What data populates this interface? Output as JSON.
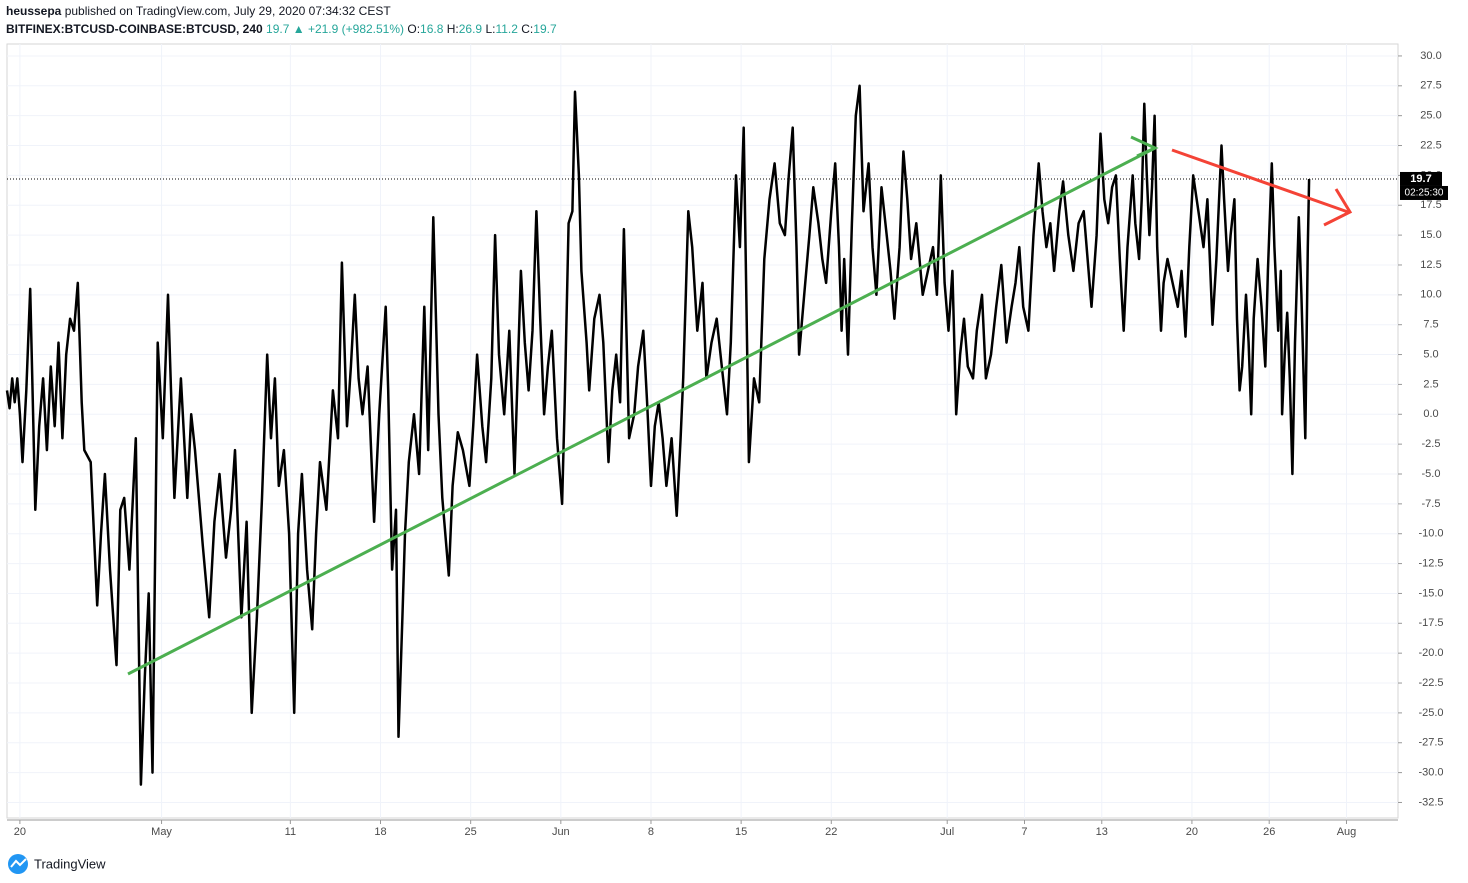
{
  "chart_data": {
    "type": "line",
    "author": "heussepa",
    "published": "published on TradingView.com, July 29, 2020 07:34:32 CEST",
    "symbol": "BITFINEX:BTCUSD-COINBASE:BTCUSD, 240",
    "last_price": 19.7,
    "change": "▲ +21.9 (+982.51%)",
    "ohlc": [
      {
        "label": "O:",
        "value": 16.8
      },
      {
        "label": "H:",
        "value": 26.9
      },
      {
        "label": "L:",
        "value": 11.2
      },
      {
        "label": "C:",
        "value": 19.7
      }
    ],
    "countdown": "02:25:30",
    "brand": "TradingView",
    "color": "#000000",
    "grid": true,
    "xlim": [
      -1,
      107
    ],
    "ylim": [
      -33.8,
      31
    ],
    "xticks": [
      {
        "value": 0,
        "label": "20"
      },
      {
        "value": 11,
        "label": "May"
      },
      {
        "value": 21,
        "label": "11"
      },
      {
        "value": 28,
        "label": "18"
      },
      {
        "value": 35,
        "label": "25"
      },
      {
        "value": 42,
        "label": "Jun"
      },
      {
        "value": 49,
        "label": "8"
      },
      {
        "value": 56,
        "label": "15"
      },
      {
        "value": 63,
        "label": "22"
      },
      {
        "value": 72,
        "label": "Jul"
      },
      {
        "value": 78,
        "label": "7"
      },
      {
        "value": 84,
        "label": "13"
      },
      {
        "value": 91,
        "label": "20"
      },
      {
        "value": 97,
        "label": "26"
      },
      {
        "value": 103,
        "label": "Aug"
      }
    ],
    "yticks": [
      {
        "value": 30,
        "label": "30.0"
      },
      {
        "value": 27.5,
        "label": "27.5"
      },
      {
        "value": 25,
        "label": "25.0"
      },
      {
        "value": 22.5,
        "label": "22.5"
      },
      {
        "value": 20,
        "label": "20.0"
      },
      {
        "value": 17.5,
        "label": "17.5"
      },
      {
        "value": 15,
        "label": "15.0"
      },
      {
        "value": 12.5,
        "label": "12.5"
      },
      {
        "value": 10,
        "label": "10.0"
      },
      {
        "value": 7.5,
        "label": "7.5"
      },
      {
        "value": 5,
        "label": "5.0"
      },
      {
        "value": 2.5,
        "label": "2.5"
      },
      {
        "value": 0,
        "label": "0.0"
      },
      {
        "value": -2.5,
        "label": "-2.5"
      },
      {
        "value": -5,
        "label": "-5.0"
      },
      {
        "value": -7.5,
        "label": "-7.5"
      },
      {
        "value": -10,
        "label": "-10.0"
      },
      {
        "value": -12.5,
        "label": "-12.5"
      },
      {
        "value": -15,
        "label": "-15.0"
      },
      {
        "value": -17.5,
        "label": "-17.5"
      },
      {
        "value": -20,
        "label": "-20.0"
      },
      {
        "value": -22.5,
        "label": "-22.5"
      },
      {
        "value": -25,
        "label": "-25.0"
      },
      {
        "value": -27.5,
        "label": "-27.5"
      },
      {
        "value": -30,
        "label": "-30.0"
      },
      {
        "value": -32.5,
        "label": "-32.5"
      }
    ],
    "x": [
      -1,
      -0.8,
      -0.6,
      -0.4,
      -0.2,
      0,
      0.2,
      0.5,
      0.8,
      1.2,
      1.5,
      1.8,
      2.1,
      2.4,
      2.7,
      3,
      3.3,
      3.6,
      3.9,
      4.2,
      4.5,
      4.8,
      5,
      5.5,
      6,
      6.3,
      6.6,
      7,
      7.5,
      7.8,
      8.1,
      8.5,
      9,
      9.4,
      9.7,
      10,
      10.3,
      10.7,
      11.1,
      11.5,
      12,
      12.5,
      13,
      13.3,
      13.6,
      14.2,
      14.7,
      15.1,
      15.5,
      16,
      16.4,
      16.7,
      17.2,
      17.6,
      18,
      18.4,
      18.8,
      19.2,
      19.5,
      19.8,
      20.1,
      20.5,
      20.9,
      21.3,
      21.6,
      21.9,
      22.3,
      22.7,
      23,
      23.3,
      23.8,
      24.3,
      24.7,
      25,
      25.4,
      25.7,
      26,
      26.3,
      26.6,
      27,
      27.5,
      27.9,
      28.4,
      28.6,
      28.9,
      29.2,
      29.4,
      29.7,
      29.9,
      30.2,
      30.6,
      31,
      31.4,
      31.7,
      32.1,
      32.5,
      32.8,
      33.3,
      33.6,
      34,
      34.4,
      34.9,
      35.2,
      35.5,
      35.9,
      36.2,
      36.6,
      36.9,
      37.2,
      37.6,
      38,
      38.4,
      38.9,
      39.2,
      39.5,
      39.8,
      40.1,
      40.4,
      40.7,
      41,
      41.3,
      41.7,
      42.1,
      42.3,
      42.6,
      42.9,
      43.1,
      43.4,
      43.6,
      44,
      44.2,
      44.6,
      45,
      45.3,
      45.7,
      46,
      46.3,
      46.6,
      46.9,
      47.3,
      47.7,
      48,
      48.4,
      48.7,
      49,
      49.3,
      49.6,
      49.9,
      50.2,
      50.6,
      51,
      51.3,
      51.5,
      51.7,
      51.9,
      52.2,
      52.6,
      53,
      53.3,
      53.7,
      54.1,
      54.5,
      54.9,
      55.2,
      55.6,
      55.9,
      56.2,
      56.4,
      56.6,
      57,
      57.4,
      57.8,
      58.2,
      58.6,
      59,
      59.4,
      59.7,
      60,
      60.3,
      60.5,
      60.9,
      61.3,
      61.6,
      62,
      62.3,
      62.6,
      63,
      63.3,
      63.6,
      63.8,
      64,
      64.3,
      64.6,
      64.9,
      65.2,
      65.5,
      65.9,
      66.2,
      66.5,
      66.9,
      67.3,
      67.6,
      67.9,
      68.3,
      68.6,
      68.9,
      69.2,
      69.6,
      70.1,
      70.5,
      70.9,
      71.2,
      71.5,
      71.8,
      72.1,
      72.4,
      72.7,
      73,
      73.3,
      73.6,
      74,
      74.3,
      74.7,
      75,
      75.4,
      75.8,
      76.2,
      76.6,
      77,
      77.3,
      77.6,
      77.9,
      78.3,
      78.7,
      79.1,
      79.4,
      79.7,
      80,
      80.3,
      80.7,
      81,
      81.4,
      81.8,
      82.2,
      82.6,
      82.9,
      83.2,
      83.6,
      83.9,
      84.2,
      84.5,
      84.8,
      85.1,
      85.4,
      85.7,
      86,
      86.4,
      86.6,
      86.9,
      87.1,
      87.3,
      87.5,
      87.7,
      87.9,
      88.1,
      88.3,
      88.6,
      88.8,
      89.1,
      89.5,
      89.9,
      90.2,
      90.5,
      90.8,
      91.1,
      91.5,
      91.9,
      92.2,
      92.6,
      92.9,
      93.3,
      93.5,
      93.8,
      94,
      94.3,
      94.5,
      94.7,
      94.9,
      95.2,
      95.4,
      95.6,
      95.8,
      96.1,
      96.4,
      96.7,
      96.9,
      97.2,
      97.4,
      97.7,
      97.9,
      98,
      98.2,
      98.4,
      98.6,
      98.8,
      99,
      99.3,
      99.5,
      99.8,
      100,
      100.1
    ],
    "values": [
      2,
      0.5,
      3,
      1,
      3,
      0,
      -4,
      2,
      10.5,
      -8,
      -1,
      3,
      -3,
      4,
      -1,
      6,
      -2,
      5,
      8,
      7,
      11,
      1,
      -3,
      -4,
      -16,
      -10,
      -5,
      -13,
      -21,
      -8,
      -7,
      -13,
      -2,
      -31,
      -22,
      -15,
      -30,
      6,
      -2,
      10,
      -7,
      3,
      -7,
      0,
      -3,
      -11,
      -17,
      -9,
      -5,
      -12,
      -8,
      -3,
      -17,
      -9,
      -25,
      -17,
      -7,
      5,
      -2,
      3,
      -6,
      -3,
      -10,
      -25,
      -10,
      -5,
      -13,
      -18,
      -10,
      -4,
      -8,
      2,
      -2,
      12.7,
      -1,
      4,
      10,
      3,
      0,
      4,
      -9,
      0,
      9,
      2,
      -13,
      -8,
      -27,
      -17,
      -10,
      -4,
      0,
      -5,
      9,
      -3,
      16.5,
      0,
      -7,
      -13.5,
      -6,
      -1.5,
      -3,
      -6,
      -1,
      5,
      -1,
      -4,
      3,
      15,
      5,
      0,
      7,
      -5,
      12,
      6,
      2,
      7,
      17,
      8,
      0,
      4,
      7,
      -2,
      -7.5,
      1,
      16,
      17,
      27,
      20,
      12,
      6,
      2,
      8,
      10,
      6,
      -4,
      2,
      5,
      1,
      15.5,
      -2,
      0,
      4,
      7,
      1,
      -6,
      -1,
      1,
      -2,
      -6,
      -2,
      -8.5,
      -2,
      3,
      10,
      17,
      14,
      7,
      11,
      3,
      6,
      8,
      4,
      0,
      6,
      20,
      14,
      24,
      10,
      -4,
      3,
      1,
      13,
      18,
      21,
      16,
      15,
      20,
      24,
      14,
      5,
      10,
      15,
      19,
      16,
      13,
      11,
      17,
      21,
      14,
      7,
      13,
      5,
      16,
      25,
      27.5,
      17,
      21,
      14,
      10,
      19,
      15,
      12,
      8,
      14,
      22,
      18,
      13,
      16,
      10,
      12,
      14,
      10,
      20,
      11,
      7,
      12,
      0,
      5,
      8,
      4,
      3,
      7,
      10,
      3,
      5,
      9,
      12.5,
      6,
      9,
      11,
      14,
      9,
      7,
      15,
      21,
      17,
      14,
      16,
      12,
      17,
      19.5,
      15,
      12,
      16,
      17,
      13,
      9,
      15,
      23.5,
      18,
      16,
      19,
      20,
      13,
      7,
      14,
      20,
      16,
      13,
      18,
      26,
      20,
      15,
      19,
      25,
      14,
      7,
      11,
      13,
      11,
      9,
      12,
      6.5,
      14,
      20,
      17,
      14,
      18,
      7.5,
      13,
      22.5,
      18,
      12,
      15,
      18,
      8,
      2,
      4,
      10,
      6,
      0,
      8,
      13,
      9,
      4,
      12,
      21,
      14,
      7,
      12,
      0,
      5,
      8.5,
      3,
      -5,
      6,
      16.5,
      10,
      -2,
      14,
      19.7
    ]
  }
}
